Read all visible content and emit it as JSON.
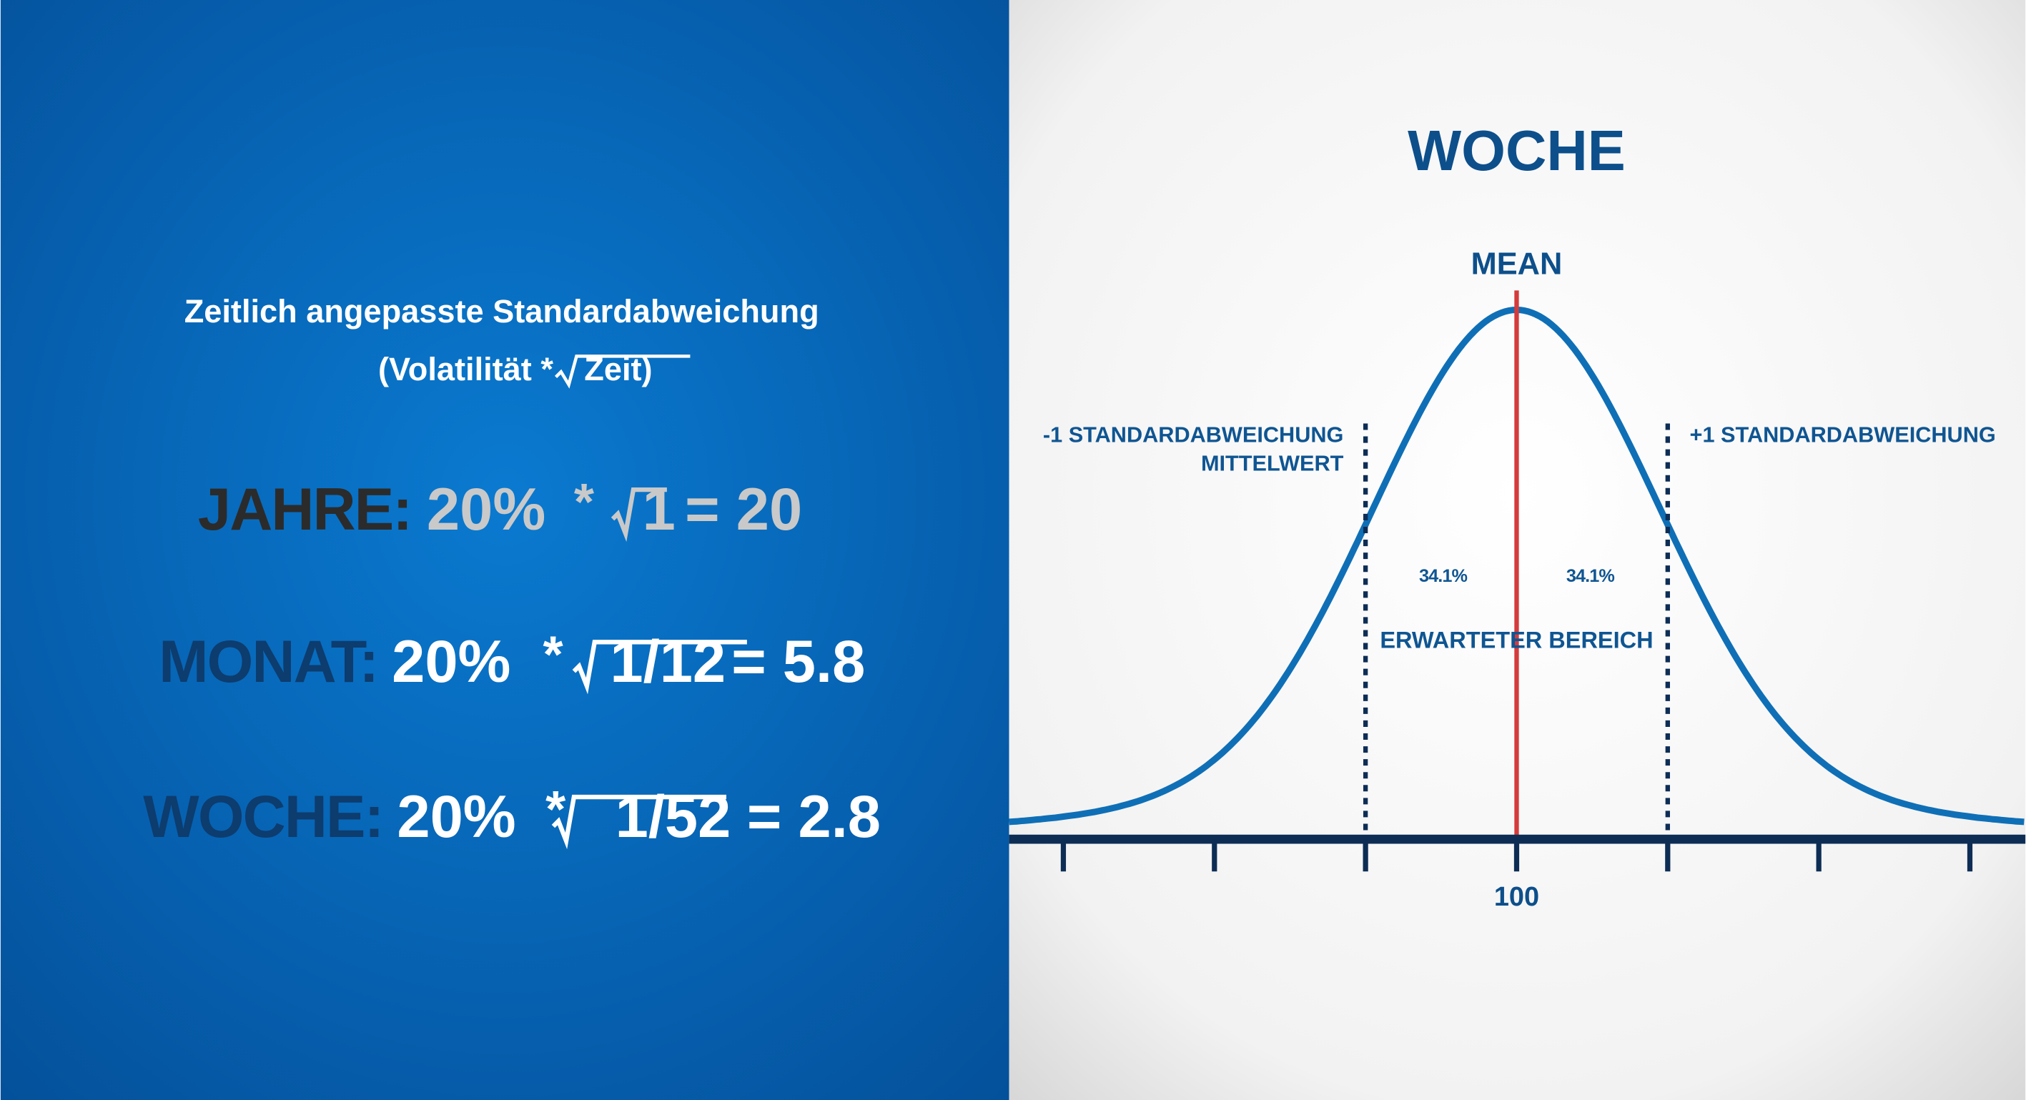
{
  "left": {
    "heading": {
      "line1": "Zeitlich angepasste Standardabweichung",
      "before_root": "(Volatilität *",
      "radicand": "Zeit)"
    },
    "rows": [
      {
        "label": "JAHRE:",
        "rate": "20%",
        "operator": "*",
        "radicand": "1",
        "result": "= 20"
      },
      {
        "label": "MONAT:",
        "rate": "20%",
        "operator": "*",
        "radicand": "1/12",
        "result": "= 5.8"
      },
      {
        "label": "WOCHE:",
        "rate": "20%",
        "operator": "*",
        "radicand": "1/52",
        "result": "= 2.8"
      }
    ]
  },
  "right": {
    "title": "WOCHE",
    "mean_label": "MEAN",
    "minus_label": [
      "-1 STANDARDABWEICHUNG",
      "MITTELWERT"
    ],
    "plus_label": "+1 STANDARDABWEICHUNG",
    "share_left": "34.1%",
    "share_right": "34.1%",
    "range_label": "ERWARTETER BEREICH",
    "axis_label": "100"
  }
}
